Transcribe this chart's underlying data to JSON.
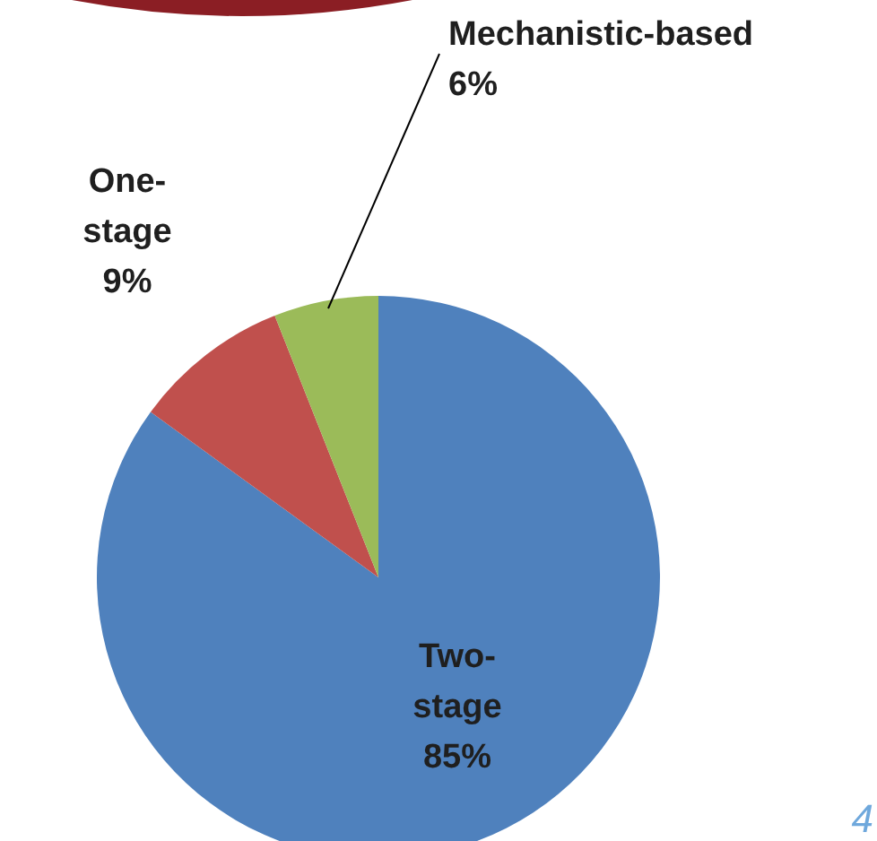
{
  "chart_data": {
    "type": "pie",
    "categories": [
      "Two-stage",
      "One-stage",
      "Mechanistic-based"
    ],
    "values": [
      85,
      9,
      6
    ],
    "colors": [
      "#4f81bd",
      "#c0504d",
      "#9bbb59"
    ],
    "value_labels": [
      "85%",
      "9%",
      "6%"
    ],
    "annotations": [
      "4"
    ]
  }
}
